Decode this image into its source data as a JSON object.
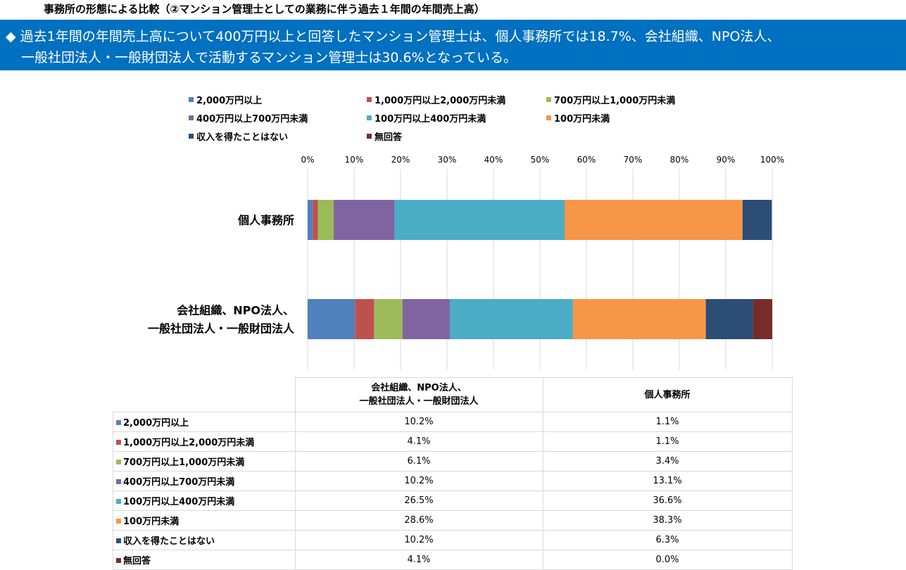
{
  "page": {
    "title": "事務所の形態による比較（②マンション管理士としての業務に伴う過去１年間の年間売上高）",
    "summary_line1": "◆ 過去1年間の年間売上高について400万円以上と回答したマンション管理士は、個人事務所では18.7%、会社組織、NPO法人、",
    "summary_line2": "一般社団法人・一般財団法人で活動するマンション管理士は30.6%となっている。"
  },
  "chart_data": {
    "type": "bar",
    "orientation": "horizontal",
    "stacked": "percent",
    "categories": [
      "個人事務所",
      "会社組織、NPO法人、\n一般社団法人・一般財団法人"
    ],
    "xlim": [
      0,
      100
    ],
    "xticks": [
      "0%",
      "10%",
      "20%",
      "30%",
      "40%",
      "50%",
      "60%",
      "70%",
      "80%",
      "90%",
      "100%"
    ],
    "grid": true,
    "legend_position": "top",
    "series": [
      {
        "name": "2,000万円以上",
        "color": "#4f81bd",
        "values": [
          1.1,
          10.2
        ]
      },
      {
        "name": "1,000万円以上2,000万円未満",
        "color": "#c0504d",
        "values": [
          1.1,
          4.1
        ]
      },
      {
        "name": "700万円以上1,000万円未満",
        "color": "#9bbb59",
        "values": [
          3.4,
          6.1
        ]
      },
      {
        "name": "400万円以上700万円未満",
        "color": "#8064a2",
        "values": [
          13.1,
          10.2
        ]
      },
      {
        "name": "100万円以上400万円未満",
        "color": "#4bacc6",
        "values": [
          36.6,
          26.5
        ]
      },
      {
        "name": "100万円未満",
        "color": "#f79646",
        "values": [
          38.3,
          28.6
        ]
      },
      {
        "name": "収入を得たことはない",
        "color": "#2c4d75",
        "values": [
          6.3,
          10.2
        ]
      },
      {
        "name": "無回答",
        "color": "#772c2a",
        "values": [
          0.0,
          4.1
        ]
      }
    ]
  },
  "table": {
    "headers": [
      "会社組織、NPO法人、\n一般社団法人・一般財団法人",
      "個人事務所"
    ],
    "rows": [
      {
        "label": "2,000万円以上",
        "color": "#4f81bd",
        "values": [
          "10.2%",
          "1.1%"
        ]
      },
      {
        "label": "1,000万円以上2,000万円未満",
        "color": "#c0504d",
        "values": [
          "4.1%",
          "1.1%"
        ]
      },
      {
        "label": "700万円以上1,000万円未満",
        "color": "#9bbb59",
        "values": [
          "6.1%",
          "3.4%"
        ]
      },
      {
        "label": "400万円以上700万円未満",
        "color": "#8064a2",
        "values": [
          "10.2%",
          "13.1%"
        ]
      },
      {
        "label": "100万円以上400万円未満",
        "color": "#4bacc6",
        "values": [
          "26.5%",
          "36.6%"
        ]
      },
      {
        "label": "100万円未満",
        "color": "#f79646",
        "values": [
          "28.6%",
          "38.3%"
        ]
      },
      {
        "label": "収入を得たことはない",
        "color": "#2c4d75",
        "values": [
          "10.2%",
          "6.3%"
        ]
      },
      {
        "label": "無回答",
        "color": "#772c2a",
        "values": [
          "4.1%",
          "0.0%"
        ]
      }
    ]
  }
}
